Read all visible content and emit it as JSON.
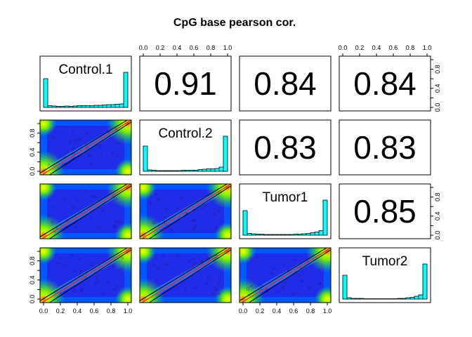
{
  "chart_data": {
    "type": "scatter_matrix",
    "title": "CpG base pearson cor.",
    "variables": [
      "Control.1",
      "Control.2",
      "Tumor1",
      "Tumor2"
    ],
    "axis_ticks": [
      "0.0",
      "0.2",
      "0.4",
      "0.6",
      "0.8",
      "1.0"
    ],
    "axis_range": [
      0,
      1
    ],
    "histogram_bins": 20,
    "histograms": [
      [
        0.82,
        0.05,
        0.04,
        0.03,
        0.03,
        0.04,
        0.03,
        0.04,
        0.05,
        0.05,
        0.05,
        0.05,
        0.06,
        0.06,
        0.07,
        0.08,
        0.08,
        0.09,
        0.1,
        1.0
      ],
      [
        0.72,
        0.04,
        0.03,
        0.02,
        0.02,
        0.02,
        0.02,
        0.02,
        0.02,
        0.03,
        0.03,
        0.03,
        0.03,
        0.05,
        0.06,
        0.07,
        0.07,
        0.08,
        0.12,
        1.0
      ],
      [
        0.7,
        0.05,
        0.04,
        0.03,
        0.03,
        0.02,
        0.02,
        0.02,
        0.02,
        0.02,
        0.02,
        0.02,
        0.03,
        0.03,
        0.04,
        0.05,
        0.07,
        0.09,
        0.13,
        1.0
      ],
      [
        0.68,
        0.04,
        0.02,
        0.02,
        0.02,
        0.01,
        0.01,
        0.01,
        0.01,
        0.01,
        0.01,
        0.01,
        0.01,
        0.02,
        0.02,
        0.04,
        0.05,
        0.08,
        0.12,
        1.0
      ]
    ],
    "correlations": [
      {
        "row": 1,
        "col": 2,
        "value": "0.91"
      },
      {
        "row": 1,
        "col": 3,
        "value": "0.84"
      },
      {
        "row": 1,
        "col": 4,
        "value": "0.84"
      },
      {
        "row": 2,
        "col": 3,
        "value": "0.83"
      },
      {
        "row": 2,
        "col": 4,
        "value": "0.83"
      },
      {
        "row": 3,
        "col": 4,
        "value": "0.85"
      }
    ],
    "histogram_color": "#00FFFF",
    "density_colors": [
      "#2A1FE0",
      "#0057FF",
      "#00E08A",
      "#FFFF00",
      "#FF6A00"
    ],
    "fit_line_color": "#E02020"
  }
}
